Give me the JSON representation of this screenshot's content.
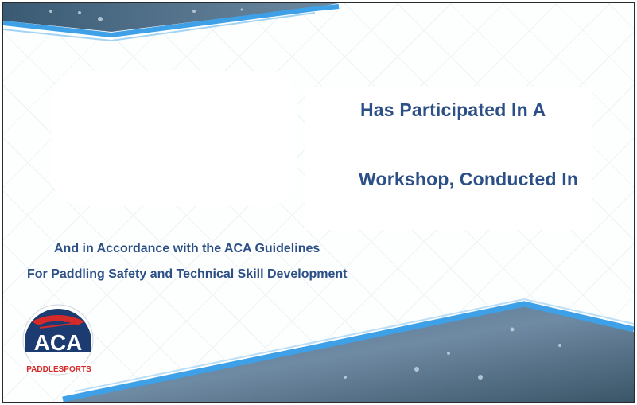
{
  "certificate": {
    "line_participated": "Has Participated In A",
    "line_workshop": "Workshop, Conducted In",
    "guideline_1": "And in Accordance with the ACA Guidelines",
    "guideline_2": "For Paddling Safety and Technical Skill Development"
  },
  "logo": {
    "acronym": "ACA",
    "tagline": "PADDLESPORTS",
    "colors": {
      "navy": "#1c3b70",
      "red": "#d42a2a"
    }
  },
  "colors": {
    "text": "#2b4f86",
    "band_blue": "#3ea0e6",
    "band_dark": "#3f5f7a"
  }
}
